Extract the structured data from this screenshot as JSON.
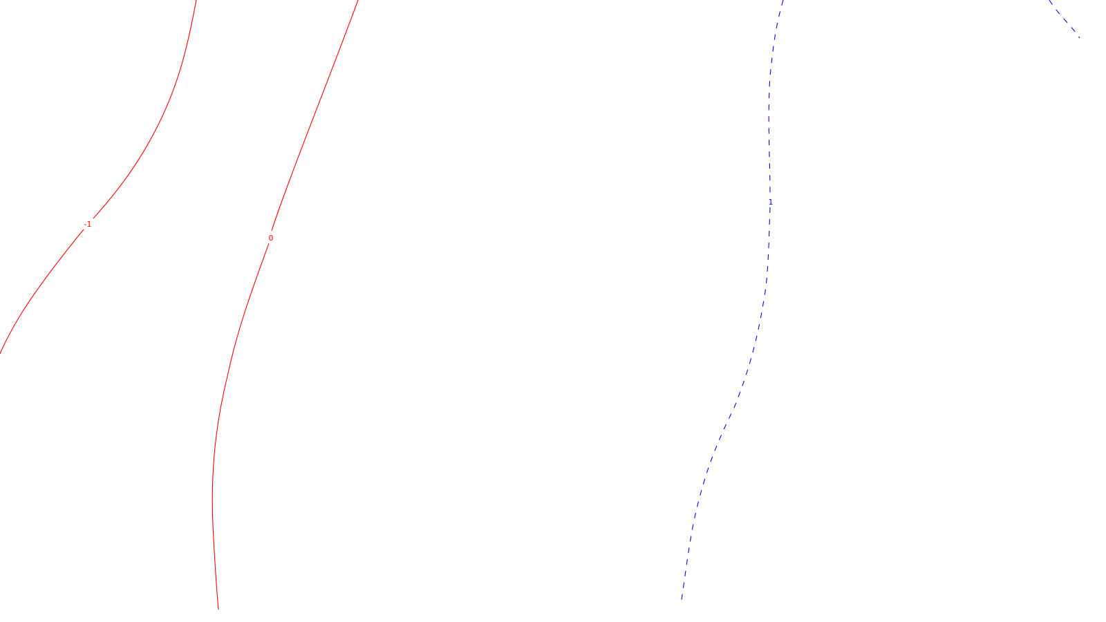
{
  "map": {
    "contours": [
      {
        "level": "-1",
        "label": "-1",
        "color": "#ff0000",
        "style": "solid"
      },
      {
        "level": "0",
        "label": "0",
        "color": "#ff0000",
        "style": "solid"
      },
      {
        "level": "1",
        "label": "1",
        "color": "#0000ff",
        "style": "dashed"
      },
      {
        "level": "1",
        "label": "",
        "color": "#0000ff",
        "style": "dashed"
      }
    ]
  }
}
